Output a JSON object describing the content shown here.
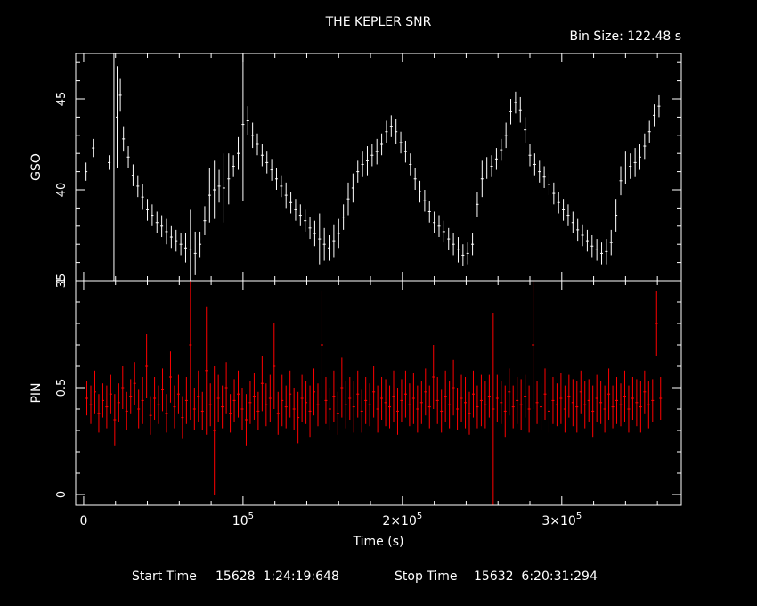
{
  "header": {
    "title": "THE KEPLER SNR",
    "bin_size": "Bin Size: 122.48 s"
  },
  "footer": {
    "start_label": "Start Time",
    "start_value": "15628  1:24:19:648",
    "stop_label": "Stop Time",
    "stop_value": "15632  6:20:31:294"
  },
  "colors": {
    "background": "#000000",
    "axes": "#ffffff",
    "gso_series": "#ffffff",
    "pin_series": "#ff0000"
  },
  "chart_data": [
    {
      "type": "scatter",
      "panel": "top",
      "title": "THE KEPLER SNR",
      "ylabel": "GSO",
      "xlabel": "",
      "xlim": [
        -5000,
        375000
      ],
      "ylim": [
        35,
        47.5
      ],
      "yticks": [
        "35",
        "40",
        "45"
      ],
      "error_bars": true,
      "grid": false,
      "series": [
        {
          "name": "",
          "color": "#ffffff",
          "x": [
            1500,
            6000,
            16000,
            19000,
            21000,
            23000,
            25000,
            28000,
            31000,
            34000,
            37000,
            40000,
            43000,
            46000,
            49000,
            52000,
            55000,
            58000,
            61000,
            64000,
            67000,
            70000,
            73000,
            76000,
            79000,
            82000,
            85000,
            88000,
            91000,
            94000,
            97000,
            100000,
            103000,
            106000,
            109000,
            112000,
            115000,
            118000,
            121000,
            124000,
            127000,
            130000,
            133000,
            136000,
            139000,
            142000,
            145000,
            148000,
            151000,
            154000,
            157000,
            160000,
            163000,
            166000,
            169000,
            172000,
            175000,
            178000,
            181000,
            184000,
            187000,
            190000,
            193000,
            196000,
            199000,
            202000,
            205000,
            208000,
            211000,
            214000,
            217000,
            220000,
            223000,
            226000,
            229000,
            232000,
            235000,
            238000,
            241000,
            244000,
            247000,
            250000,
            253000,
            256000,
            259000,
            262000,
            265000,
            268000,
            271000,
            274000,
            277000,
            280000,
            283000,
            286000,
            289000,
            292000,
            295000,
            298000,
            301000,
            304000,
            307000,
            310000,
            313000,
            316000,
            319000,
            322000,
            325000,
            328000,
            331000,
            334000,
            337000,
            340000,
            343000,
            346000,
            349000,
            352000,
            355000,
            358000,
            361000
          ],
          "y": [
            41,
            42.3,
            41.5,
            41.2,
            44,
            45.2,
            42.8,
            41.8,
            40.8,
            40.2,
            39.6,
            38.9,
            38.6,
            38.2,
            38,
            37.7,
            37.4,
            37.2,
            37,
            36.8,
            36.7,
            36.5,
            37,
            38.3,
            39.7,
            40,
            40.2,
            40.1,
            40.6,
            41.3,
            42,
            43.6,
            43.8,
            43,
            42.5,
            41.9,
            41.5,
            41.1,
            40.6,
            40.2,
            39.7,
            39.3,
            38.9,
            38.6,
            38.3,
            37.9,
            37.6,
            37.3,
            37,
            36.8,
            37.2,
            37.6,
            38.5,
            39.5,
            40.1,
            41,
            41.4,
            41.6,
            41.9,
            42.1,
            42.5,
            43.2,
            43.5,
            43.2,
            42.6,
            42.1,
            41.4,
            40.6,
            39.9,
            39.4,
            38.8,
            38.2,
            38,
            37.7,
            37.3,
            37,
            36.7,
            36.4,
            36.5,
            37,
            39.2,
            40.6,
            41.2,
            41.3,
            41.7,
            42.2,
            43,
            44.3,
            44.8,
            44.4,
            43.3,
            41.9,
            41.4,
            41,
            40.7,
            40.3,
            39.8,
            39.3,
            38.9,
            38.6,
            38.2,
            37.8,
            37.5,
            37.2,
            36.9,
            36.7,
            36.5,
            36.6,
            37.1,
            38.6,
            40.5,
            41.2,
            41.3,
            41.5,
            41.8,
            42.4,
            43.2,
            44.1,
            44.6
          ],
          "errors": [
            0.5,
            0.5,
            0.4,
            6.3,
            2.8,
            0.9,
            0.7,
            0.6,
            0.6,
            0.6,
            0.7,
            0.6,
            0.6,
            0.6,
            0.6,
            0.7,
            0.6,
            0.6,
            0.6,
            0.8,
            2.2,
            1.2,
            0.7,
            0.8,
            1.5,
            1.6,
            0.9,
            1.9,
            1.4,
            0.6,
            0.9,
            4.2,
            0.8,
            0.7,
            0.6,
            0.6,
            0.6,
            0.6,
            0.6,
            0.6,
            0.7,
            0.6,
            0.6,
            0.6,
            0.6,
            0.6,
            0.7,
            1.4,
            0.9,
            0.7,
            0.9,
            0.8,
            0.7,
            0.9,
            0.8,
            0.6,
            0.7,
            0.8,
            0.6,
            0.7,
            0.6,
            0.6,
            0.6,
            0.7,
            0.6,
            0.6,
            0.6,
            0.6,
            0.6,
            0.6,
            0.6,
            0.6,
            0.6,
            0.6,
            0.6,
            0.6,
            0.7,
            0.6,
            0.6,
            0.6,
            0.7,
            1,
            0.6,
            0.6,
            0.6,
            0.6,
            0.7,
            0.7,
            0.6,
            0.7,
            0.7,
            0.6,
            0.6,
            0.6,
            0.6,
            0.6,
            0.6,
            0.6,
            0.6,
            0.6,
            0.6,
            0.6,
            0.6,
            0.6,
            0.6,
            0.6,
            0.6,
            0.7,
            0.7,
            0.9,
            0.8,
            0.9,
            0.7,
            0.8,
            0.7,
            0.7,
            0.6,
            0.6,
            0.6
          ]
        }
      ]
    },
    {
      "type": "scatter",
      "panel": "bottom",
      "ylabel": "PIN",
      "xlabel": "Time (s)",
      "xlim": [
        -5000,
        375000
      ],
      "ylim": [
        -0.05,
        1.0
      ],
      "yticks": [
        "0",
        "0.5",
        "1"
      ],
      "xticks": [
        "0",
        "10^5",
        "2×10^5",
        "3×10^5"
      ],
      "xtick_values": [
        0,
        100000,
        200000,
        300000
      ],
      "error_bars": true,
      "grid": false,
      "series": [
        {
          "name": "",
          "color": "#ff0000",
          "x": [
            2000,
            4500,
            7000,
            9500,
            12000,
            14500,
            17000,
            19500,
            22000,
            24500,
            27000,
            29500,
            32000,
            34500,
            37000,
            39500,
            42000,
            44500,
            47000,
            49500,
            52000,
            54500,
            57000,
            59500,
            62000,
            64500,
            67000,
            69500,
            72000,
            74500,
            77000,
            79500,
            82000,
            84500,
            87000,
            89500,
            92000,
            94500,
            97000,
            99500,
            102000,
            104500,
            107000,
            109500,
            112000,
            114500,
            117000,
            119500,
            122000,
            124500,
            127000,
            129500,
            132000,
            134500,
            137000,
            139500,
            142000,
            144500,
            147000,
            149500,
            152000,
            154500,
            157000,
            159500,
            162000,
            164500,
            167000,
            169500,
            172000,
            174500,
            177000,
            179500,
            182000,
            184500,
            187000,
            189500,
            192000,
            194500,
            197000,
            199500,
            202000,
            204500,
            207000,
            209500,
            212000,
            214500,
            217000,
            219500,
            222000,
            224500,
            227000,
            229500,
            232000,
            234500,
            237000,
            239500,
            242000,
            244500,
            247000,
            249500,
            252000,
            254500,
            257000,
            259500,
            262000,
            264500,
            267000,
            269500,
            272000,
            274500,
            277000,
            279500,
            282000,
            284500,
            287000,
            289500,
            292000,
            294500,
            297000,
            299500,
            302000,
            304500,
            307000,
            309500,
            312000,
            314500,
            317000,
            319500,
            322000,
            324500,
            327000,
            329500,
            332000,
            334500,
            337000,
            339500,
            342000,
            344500,
            347000,
            349500,
            352000,
            354500,
            357000,
            359500,
            362000
          ],
          "y": [
            0.45,
            0.42,
            0.48,
            0.38,
            0.44,
            0.41,
            0.47,
            0.35,
            0.43,
            0.5,
            0.39,
            0.46,
            0.52,
            0.4,
            0.44,
            0.6,
            0.37,
            0.45,
            0.42,
            0.49,
            0.38,
            0.55,
            0.41,
            0.47,
            0.36,
            0.44,
            0.7,
            0.4,
            0.46,
            0.39,
            0.58,
            0.42,
            0.3,
            0.45,
            0.41,
            0.5,
            0.38,
            0.44,
            0.47,
            0.4,
            0.35,
            0.43,
            0.46,
            0.39,
            0.52,
            0.42,
            0.45,
            0.6,
            0.38,
            0.44,
            0.41,
            0.47,
            0.4,
            0.36,
            0.45,
            0.43,
            0.39,
            0.48,
            0.42,
            0.7,
            0.44,
            0.4,
            0.46,
            0.38,
            0.5,
            0.42,
            0.45,
            0.41,
            0.47,
            0.39,
            0.44,
            0.42,
            0.48,
            0.4,
            0.45,
            0.43,
            0.41,
            0.46,
            0.39,
            0.44,
            0.47,
            0.42,
            0.45,
            0.4,
            0.43,
            0.48,
            0.41,
            0.55,
            0.44,
            0.39,
            0.46,
            0.42,
            0.5,
            0.4,
            0.45,
            0.43,
            0.38,
            0.47,
            0.41,
            0.44,
            0.42,
            0.46,
            0.4,
            0.45,
            0.43,
            0.39,
            0.48,
            0.41,
            0.44,
            0.42,
            0.46,
            0.4,
            0.7,
            0.43,
            0.41,
            0.47,
            0.39,
            0.44,
            0.42,
            0.45,
            0.4,
            0.46,
            0.43,
            0.41,
            0.48,
            0.42,
            0.44,
            0.39,
            0.45,
            0.43,
            0.4,
            0.47,
            0.41,
            0.44,
            0.42,
            0.46,
            0.4,
            0.45,
            0.43,
            0.41,
            0.48,
            0.42,
            0.44,
            0.8,
            0.45
          ],
          "errors": [
            0.08,
            0.09,
            0.1,
            0.09,
            0.08,
            0.1,
            0.09,
            0.12,
            0.09,
            0.1,
            0.09,
            0.08,
            0.1,
            0.09,
            0.11,
            0.15,
            0.09,
            0.1,
            0.09,
            0.1,
            0.09,
            0.12,
            0.1,
            0.09,
            0.1,
            0.11,
            0.35,
            0.1,
            0.12,
            0.09,
            0.3,
            0.1,
            0.3,
            0.11,
            0.1,
            0.12,
            0.09,
            0.1,
            0.11,
            0.1,
            0.12,
            0.1,
            0.11,
            0.09,
            0.13,
            0.1,
            0.11,
            0.2,
            0.1,
            0.12,
            0.1,
            0.11,
            0.1,
            0.12,
            0.11,
            0.1,
            0.12,
            0.11,
            0.1,
            0.25,
            0.11,
            0.1,
            0.12,
            0.1,
            0.14,
            0.11,
            0.1,
            0.12,
            0.11,
            0.1,
            0.11,
            0.1,
            0.12,
            0.11,
            0.1,
            0.11,
            0.1,
            0.12,
            0.11,
            0.1,
            0.11,
            0.1,
            0.12,
            0.11,
            0.1,
            0.11,
            0.1,
            0.15,
            0.11,
            0.1,
            0.12,
            0.11,
            0.13,
            0.1,
            0.11,
            0.12,
            0.1,
            0.11,
            0.1,
            0.12,
            0.11,
            0.1,
            0.45,
            0.11,
            0.1,
            0.12,
            0.11,
            0.1,
            0.11,
            0.12,
            0.1,
            0.11,
            0.3,
            0.1,
            0.11,
            0.12,
            0.1,
            0.11,
            0.1,
            0.12,
            0.11,
            0.1,
            0.11,
            0.12,
            0.1,
            0.11,
            0.1,
            0.12,
            0.11,
            0.1,
            0.11,
            0.12,
            0.1,
            0.11,
            0.1,
            0.12,
            0.11,
            0.1,
            0.11,
            0.12,
            0.1,
            0.11,
            0.1,
            0.15,
            0.1
          ]
        }
      ]
    }
  ]
}
